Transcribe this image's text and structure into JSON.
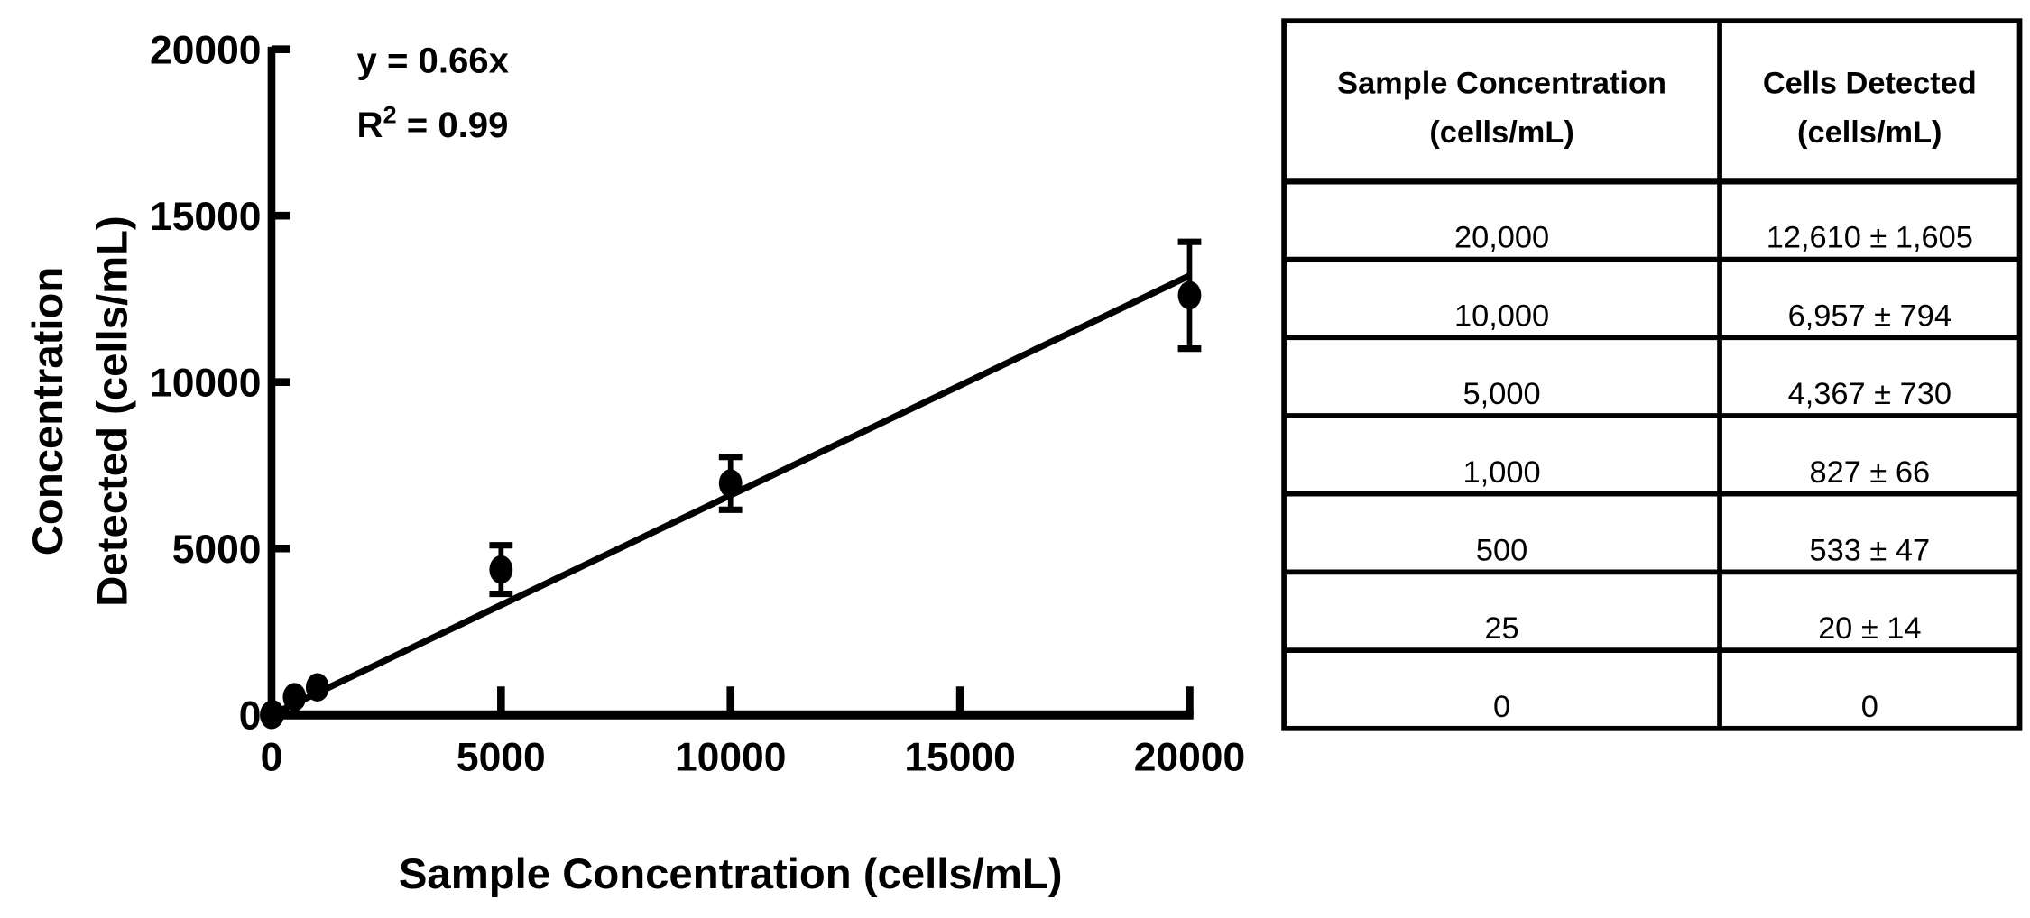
{
  "chart_data": {
    "type": "scatter",
    "xlabel": "Sample Concentration (cells/mL)",
    "ylabel_lines": [
      "Concentration",
      "Detected (cells/mL)"
    ],
    "xlim": [
      0,
      20000
    ],
    "ylim": [
      0,
      20000
    ],
    "xticks": [
      "0",
      "5000",
      "10000",
      "15000",
      "20000"
    ],
    "yticks": [
      "0",
      "5000",
      "10000",
      "15000",
      "20000"
    ],
    "xtick_values": [
      0,
      5000,
      10000,
      15000,
      20000
    ],
    "ytick_values": [
      0,
      5000,
      10000,
      15000,
      20000
    ],
    "grid": false,
    "series": [
      {
        "name": "Cells Detected",
        "x": [
          0,
          25,
          500,
          1000,
          5000,
          10000,
          20000
        ],
        "y": [
          0,
          20,
          533,
          827,
          4367,
          6957,
          12610
        ],
        "error": [
          0,
          14,
          47,
          66,
          730,
          794,
          1605
        ]
      }
    ],
    "fit": {
      "slope": 0.66,
      "intercept": 0
    },
    "annotation": {
      "equation": "y = 0.66x",
      "r2_prefix": "R",
      "r2_sup": "2",
      "r2_value": " = 0.99"
    }
  },
  "table": {
    "headers": [
      [
        "Sample Concentration",
        "(cells/mL)"
      ],
      [
        "Cells Detected",
        "(cells/mL)"
      ]
    ],
    "rows": [
      [
        "20,000",
        "12,610 ± 1,605"
      ],
      [
        "10,000",
        "6,957 ± 794"
      ],
      [
        "5,000",
        "4,367 ± 730"
      ],
      [
        "1,000",
        "827 ± 66"
      ],
      [
        "500",
        "533 ± 47"
      ],
      [
        "25",
        "20 ± 14"
      ],
      [
        "0",
        "0"
      ]
    ]
  }
}
